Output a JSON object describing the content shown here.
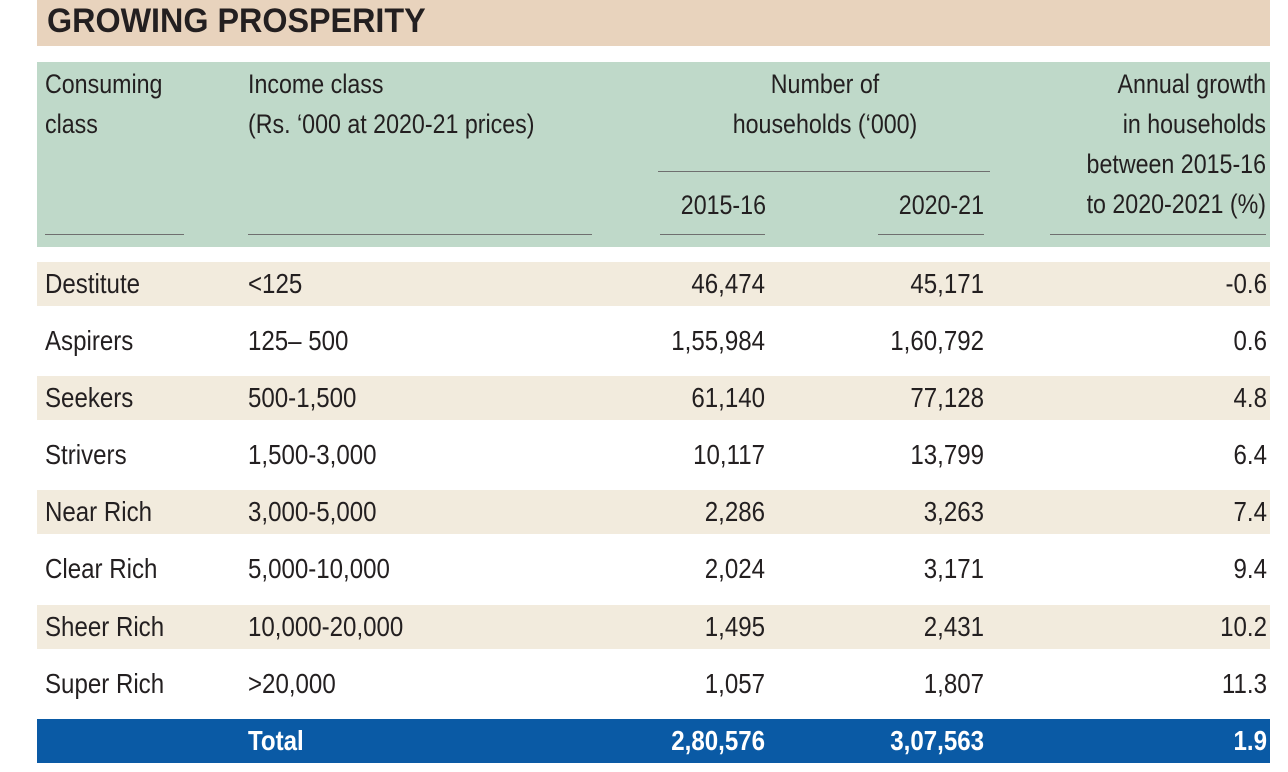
{
  "title": "GROWING PROSPERITY",
  "header": {
    "col1": [
      "Consuming",
      "class"
    ],
    "col2": [
      "Income class",
      "(Rs. ‘000 at 2020-21 prices)"
    ],
    "col3": [
      "Number of",
      "households (‘000)"
    ],
    "col3a": "2015-16",
    "col3b": "2020-21",
    "col4": [
      "Annual growth",
      "in households",
      "between 2015-16",
      "to 2020-2021 (%)"
    ]
  },
  "rows": [
    {
      "consuming_class": "Destitute",
      "income_class": "<125",
      "hh_2015_16": "46,474",
      "hh_2020_21": "45,171",
      "growth": "-0.6"
    },
    {
      "consuming_class": "Aspirers",
      "income_class": "125– 500",
      "hh_2015_16": "1,55,984",
      "hh_2020_21": "1,60,792",
      "growth": "0.6"
    },
    {
      "consuming_class": "Seekers",
      "income_class": "500-1,500",
      "hh_2015_16": "61,140",
      "hh_2020_21": "77,128",
      "growth": "4.8"
    },
    {
      "consuming_class": "Strivers",
      "income_class": "1,500-3,000",
      "hh_2015_16": "10,117",
      "hh_2020_21": "13,799",
      "growth": "6.4"
    },
    {
      "consuming_class": "Near Rich",
      "income_class": "3,000-5,000",
      "hh_2015_16": "2,286",
      "hh_2020_21": "3,263",
      "growth": "7.4"
    },
    {
      "consuming_class": "Clear Rich",
      "income_class": "5,000-10,000",
      "hh_2015_16": "2,024",
      "hh_2020_21": "3,171",
      "growth": "9.4"
    },
    {
      "consuming_class": "Sheer Rich",
      "income_class": "10,000-20,000",
      "hh_2015_16": "1,495",
      "hh_2020_21": "2,431",
      "growth": "10.2"
    },
    {
      "consuming_class": "Super Rich",
      "income_class": ">20,000",
      "hh_2015_16": "1,057",
      "hh_2020_21": "1,807",
      "growth": "11.3"
    }
  ],
  "total": {
    "label": "Total",
    "hh_2015_16": "2,80,576",
    "hh_2020_21": "3,07,563",
    "growth": "1.9"
  },
  "colors": {
    "title_band": "#e8d3bd",
    "header_band": "#bfd9c9",
    "row_shade": "#f2ebdd",
    "total_band": "#0a5aa5"
  }
}
